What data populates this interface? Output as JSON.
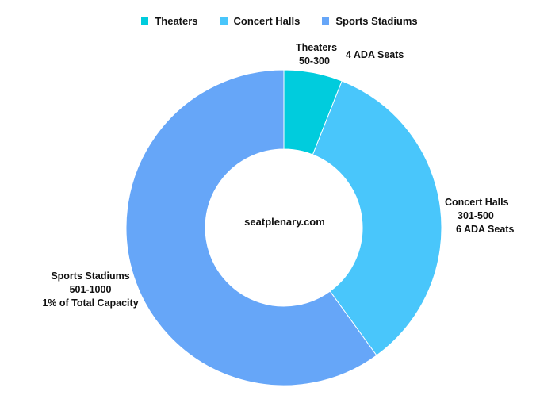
{
  "chart_data": {
    "type": "pie",
    "donut": true,
    "center_text": "seatplenary.com",
    "categories": [
      "Theaters",
      "Concert Halls",
      "Sports Stadiums"
    ],
    "values": [
      6,
      34,
      60
    ],
    "colors": [
      "#00ccdd",
      "#49c6fb",
      "#66a6f8"
    ],
    "legend_position": "top-center",
    "legend": [
      "Theaters",
      "Concert Halls",
      "Sports Stadiums"
    ],
    "annotations": [
      {
        "category": "Theaters",
        "lines": [
          "Theaters",
          "50-300",
          "4 ADA Seats"
        ]
      },
      {
        "category": "Concert Halls",
        "lines": [
          "Concert Halls",
          "301-500",
          "6 ADA Seats"
        ]
      },
      {
        "category": "Sports Stadiums",
        "lines": [
          "Sports Stadiums",
          "501-1000",
          "1% of Total Capacity"
        ]
      }
    ]
  }
}
